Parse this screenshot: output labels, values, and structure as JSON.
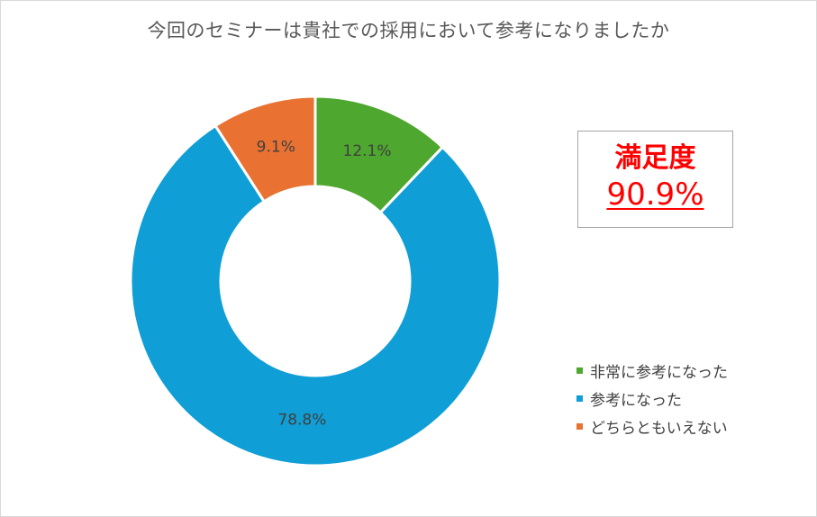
{
  "chart_data": {
    "type": "pie",
    "variant": "donut",
    "title": "今回のセミナーは貴社での採用において参考になりましたか",
    "categories": [
      "非常に参考になった",
      "参考になった",
      "どちらともいえない"
    ],
    "values": [
      12.1,
      78.8,
      9.1
    ],
    "data_labels": [
      "12.1%",
      "78.8%",
      "9.1%"
    ],
    "colors": [
      "#4ea72e",
      "#0f9ed5",
      "#e97132"
    ],
    "legend_position": "right"
  },
  "satisfaction": {
    "label": "満足度",
    "value": "90.9%"
  }
}
